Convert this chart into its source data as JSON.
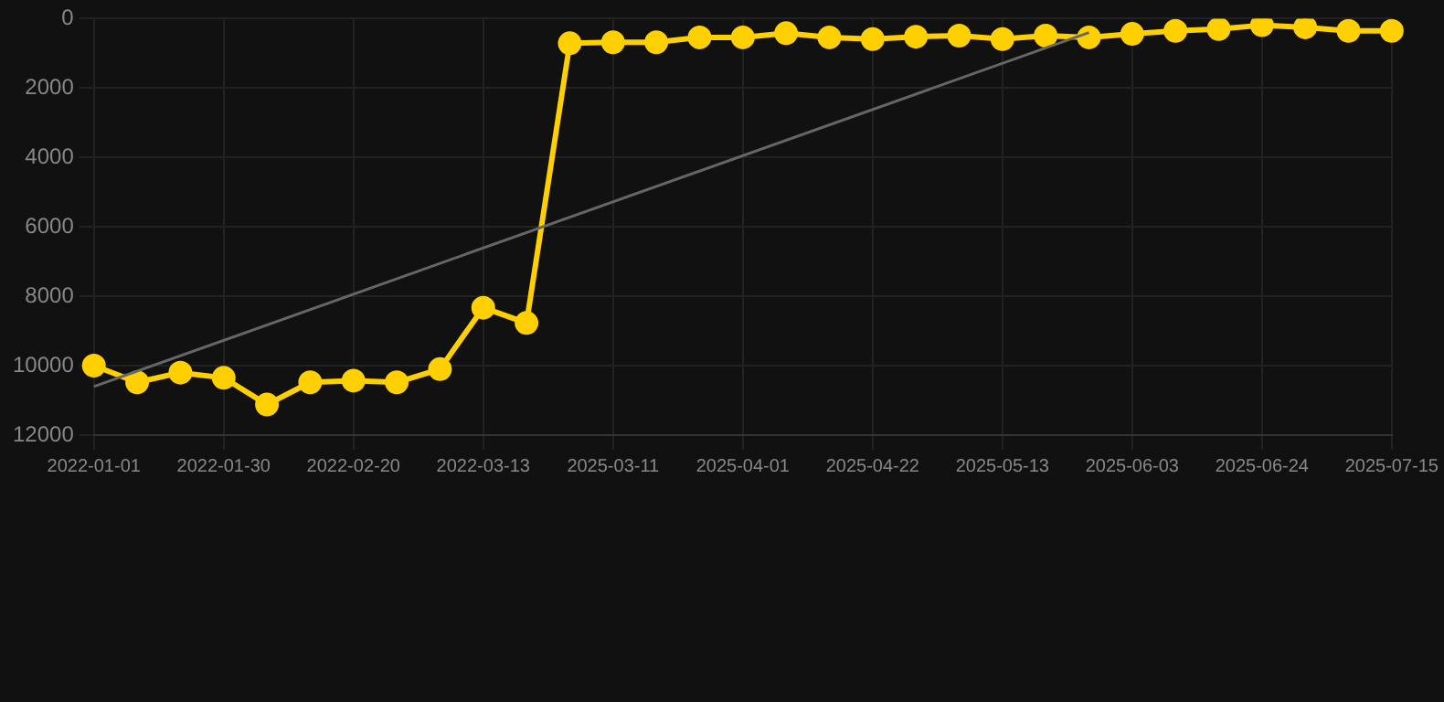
{
  "chart_data": {
    "type": "line",
    "categories": [
      "2022-01-01",
      null,
      null,
      "2022-01-30",
      null,
      null,
      "2022-02-20",
      null,
      null,
      "2022-03-13",
      null,
      null,
      "2025-03-11",
      null,
      null,
      "2025-04-01",
      null,
      null,
      "2025-04-22",
      null,
      null,
      "2025-05-13",
      null,
      null,
      "2025-06-03",
      null,
      null,
      "2025-06-24",
      null,
      null,
      "2025-07-15"
    ],
    "series": [
      {
        "type": "line",
        "color": "#666666",
        "marker": "none",
        "values": [
          10600,
          null,
          null,
          null,
          null,
          null,
          null,
          null,
          null,
          null,
          null,
          null,
          null,
          null,
          null,
          null,
          null,
          null,
          null,
          null,
          null,
          null,
          null,
          400,
          null,
          null,
          null,
          null,
          null,
          null,
          null
        ]
      },
      {
        "color": "#ffd000",
        "marker": "circle",
        "values": [
          10000,
          10480,
          10200,
          10350,
          11120,
          10480,
          10430,
          10480,
          10100,
          8330,
          8770,
          710,
          680,
          680,
          540,
          540,
          420,
          540,
          590,
          520,
          490,
          590,
          490,
          540,
          440,
          350,
          300,
          190,
          250,
          350,
          350
        ]
      }
    ],
    "ylim": [
      12000,
      0
    ],
    "yticks": [
      0,
      2000,
      4000,
      6000,
      8000,
      10000,
      12000
    ],
    "grid": true,
    "legend": false
  }
}
